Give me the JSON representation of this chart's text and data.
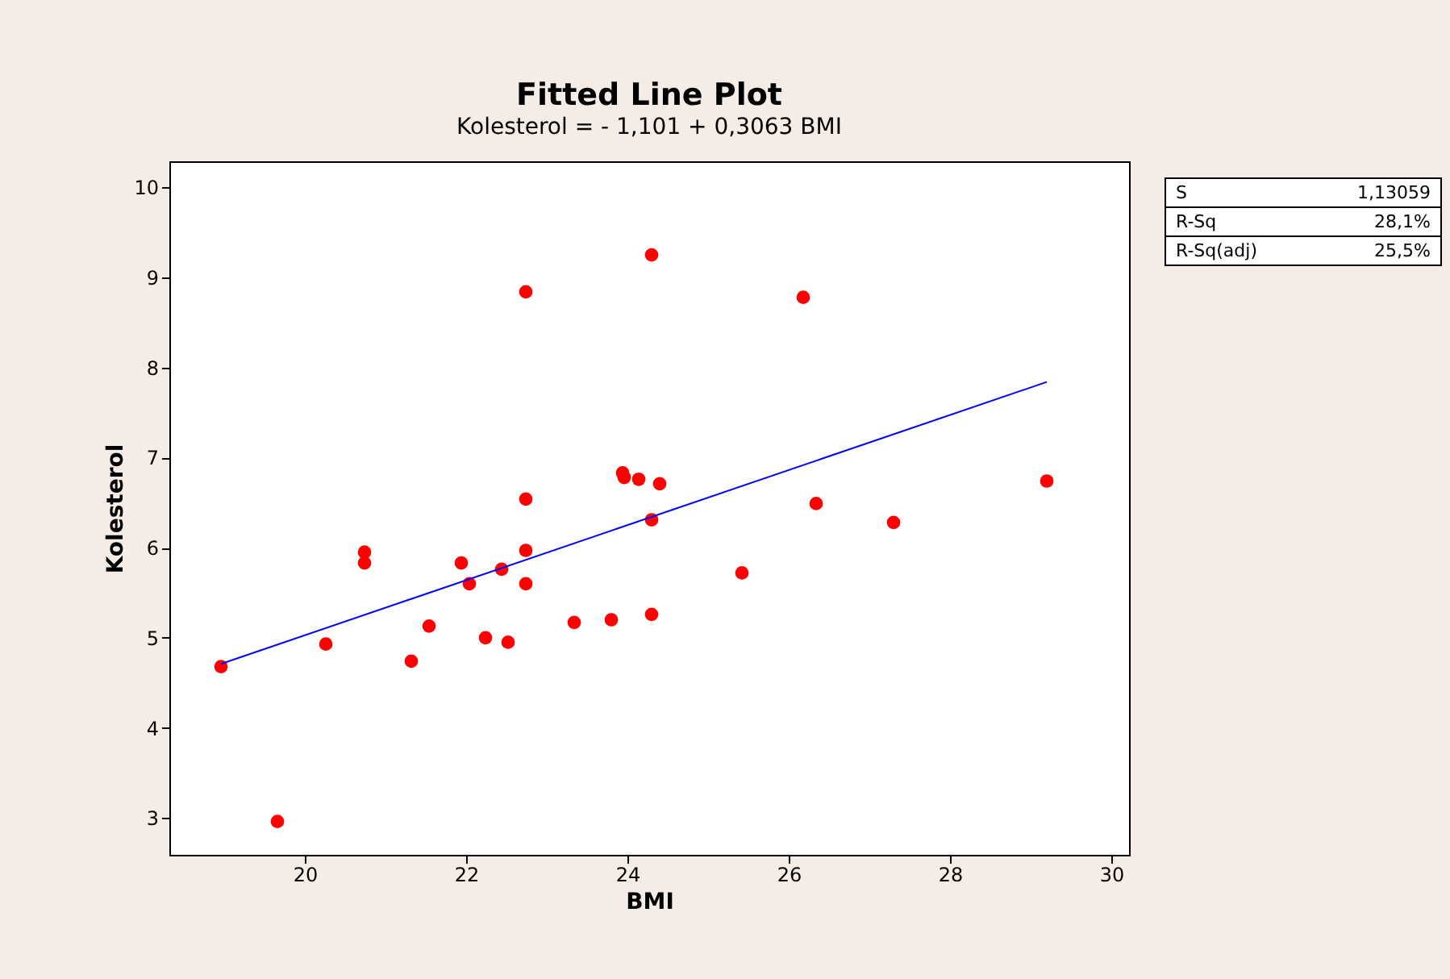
{
  "chart_data": {
    "type": "scatter",
    "title": "Fitted Line Plot",
    "subtitle": "Kolesterol =  - 1,101 + 0,3063 BMI",
    "xlabel": "BMI",
    "ylabel": "Kolesterol",
    "xlim": [
      18.32,
      30.22
    ],
    "xticks": [
      20,
      22,
      24,
      26,
      28,
      30
    ],
    "ylim": [
      2.59,
      10.29
    ],
    "yticks": [
      3,
      4,
      5,
      6,
      7,
      8,
      9,
      10
    ],
    "grid": false,
    "series": [
      {
        "color": "#ff0000",
        "marker": "circle",
        "x": [
          18.96,
          19.66,
          20.26,
          20.74,
          20.74,
          21.32,
          21.54,
          21.94,
          22.04,
          22.24,
          22.44,
          22.52,
          22.74,
          22.74,
          22.74,
          22.74,
          23.34,
          23.8,
          23.94,
          23.96,
          24.14,
          24.3,
          24.3,
          24.3,
          24.4,
          25.42,
          26.18,
          26.34,
          27.3,
          29.2
        ],
        "values": [
          4.68,
          2.96,
          4.93,
          5.95,
          5.83,
          4.74,
          5.13,
          5.83,
          5.6,
          5.0,
          5.76,
          4.95,
          8.84,
          6.54,
          5.97,
          5.6,
          5.17,
          5.2,
          6.83,
          6.78,
          6.76,
          9.25,
          6.31,
          5.26,
          6.71,
          5.72,
          8.78,
          6.49,
          6.28,
          6.74
        ]
      },
      {
        "type": "line",
        "color": "#0000ff",
        "marker": "none",
        "line_style": "solid",
        "x": [
          18.96,
          29.2
        ],
        "values": [
          4.71,
          7.84
        ]
      }
    ],
    "annotations": [
      "S\t1,13059",
      "R-Sq\t28,1%",
      "R-Sq(adj)\t25,5%"
    ]
  }
}
